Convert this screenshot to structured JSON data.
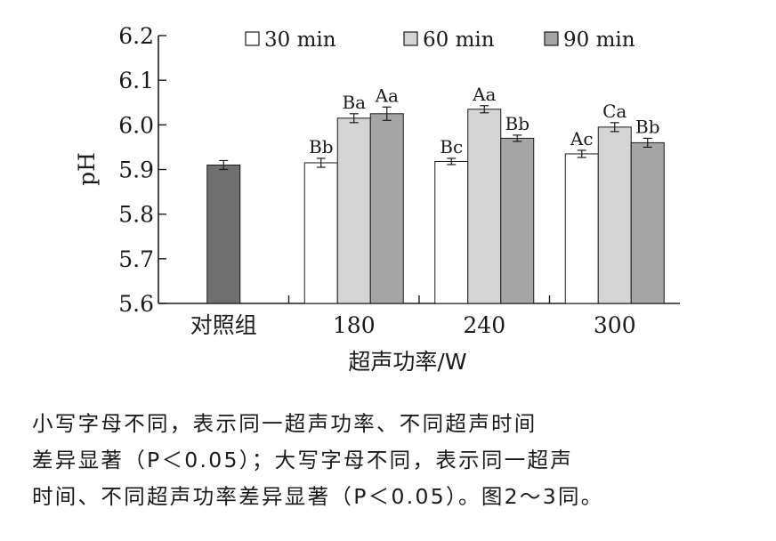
{
  "chart_data": {
    "type": "bar",
    "title": "",
    "xlabel": "超声功率/W",
    "ylabel": "pH",
    "ylim": [
      5.6,
      6.2
    ],
    "yticks": [
      5.6,
      5.7,
      5.8,
      5.9,
      6.0,
      6.1,
      6.2
    ],
    "ytick_labels": [
      "5.6",
      "5.7",
      "5.8",
      "5.9",
      "6.0",
      "6.1",
      "6.2"
    ],
    "categories": [
      "对照组",
      "180",
      "240",
      "300"
    ],
    "legend_position": "top",
    "grid": false,
    "control": {
      "value": 5.91,
      "error": 0.01,
      "color": "#6f6f6f",
      "label": ""
    },
    "series": [
      {
        "name": "30 min",
        "color": "#ffffff",
        "values": [
          null,
          5.915,
          5.918,
          5.935
        ],
        "errors": [
          null,
          0.01,
          0.007,
          0.008
        ],
        "labels": [
          null,
          "Bb",
          "Bc",
          "Ac"
        ]
      },
      {
        "name": "60 min",
        "color": "#d4d4d4",
        "values": [
          null,
          6.015,
          6.035,
          5.995
        ],
        "errors": [
          null,
          0.01,
          0.008,
          0.01
        ],
        "labels": [
          null,
          "Ba",
          "Aa",
          "Ca"
        ]
      },
      {
        "name": "90 min",
        "color": "#a5a5a5",
        "values": [
          null,
          6.025,
          5.97,
          5.96
        ],
        "errors": [
          null,
          0.015,
          0.007,
          0.01
        ],
        "labels": [
          null,
          "Aa",
          "Bb",
          "Bb"
        ]
      }
    ]
  },
  "caption": {
    "lines": [
      "小写字母不同，表示同一超声功率、不同超声时间",
      "差异显著（P＜0.05）；大写字母不同，表示同一超声",
      "时间、不同超声功率差异显著（P＜0.05）。图2～3同。"
    ]
  }
}
